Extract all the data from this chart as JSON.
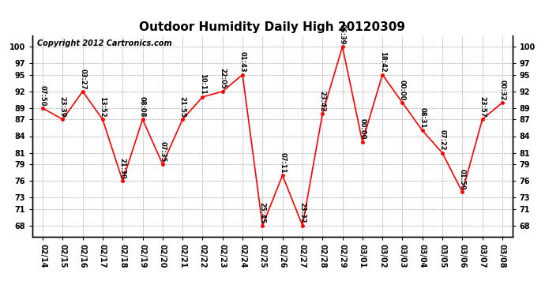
{
  "title": "Outdoor Humidity Daily High 20120309",
  "copyright": "Copyright 2012 Cartronics.com",
  "dates": [
    "02/14",
    "02/15",
    "02/16",
    "02/17",
    "02/18",
    "02/19",
    "02/20",
    "02/21",
    "02/22",
    "02/23",
    "02/24",
    "02/25",
    "02/26",
    "02/27",
    "02/28",
    "02/29",
    "03/01",
    "03/02",
    "03/03",
    "03/04",
    "03/05",
    "03/06",
    "03/07",
    "03/08"
  ],
  "values": [
    89,
    87,
    92,
    87,
    76,
    87,
    79,
    87,
    91,
    92,
    95,
    68,
    77,
    68,
    88,
    100,
    83,
    95,
    90,
    85,
    81,
    74,
    87,
    90
  ],
  "labels": [
    "07:50",
    "23:39",
    "03:27",
    "13:52",
    "21:30",
    "08:08",
    "07:35",
    "21:55",
    "10:11",
    "22:05",
    "01:43",
    "25:45",
    "07:11",
    "23:32",
    "23:42",
    "06:39",
    "00:00",
    "18:42",
    "00:00",
    "08:31",
    "07:22",
    "01:50",
    "23:57",
    "00:32"
  ],
  "yticks": [
    68,
    71,
    73,
    76,
    79,
    81,
    84,
    87,
    89,
    92,
    95,
    97,
    100
  ],
  "ylim": [
    66,
    102
  ],
  "line_color": "red",
  "marker_color": "red",
  "bg_color": "white",
  "grid_color": "#aaaaaa",
  "title_fontsize": 11,
  "label_fontsize": 6,
  "tick_fontsize": 7,
  "copyright_fontsize": 7
}
